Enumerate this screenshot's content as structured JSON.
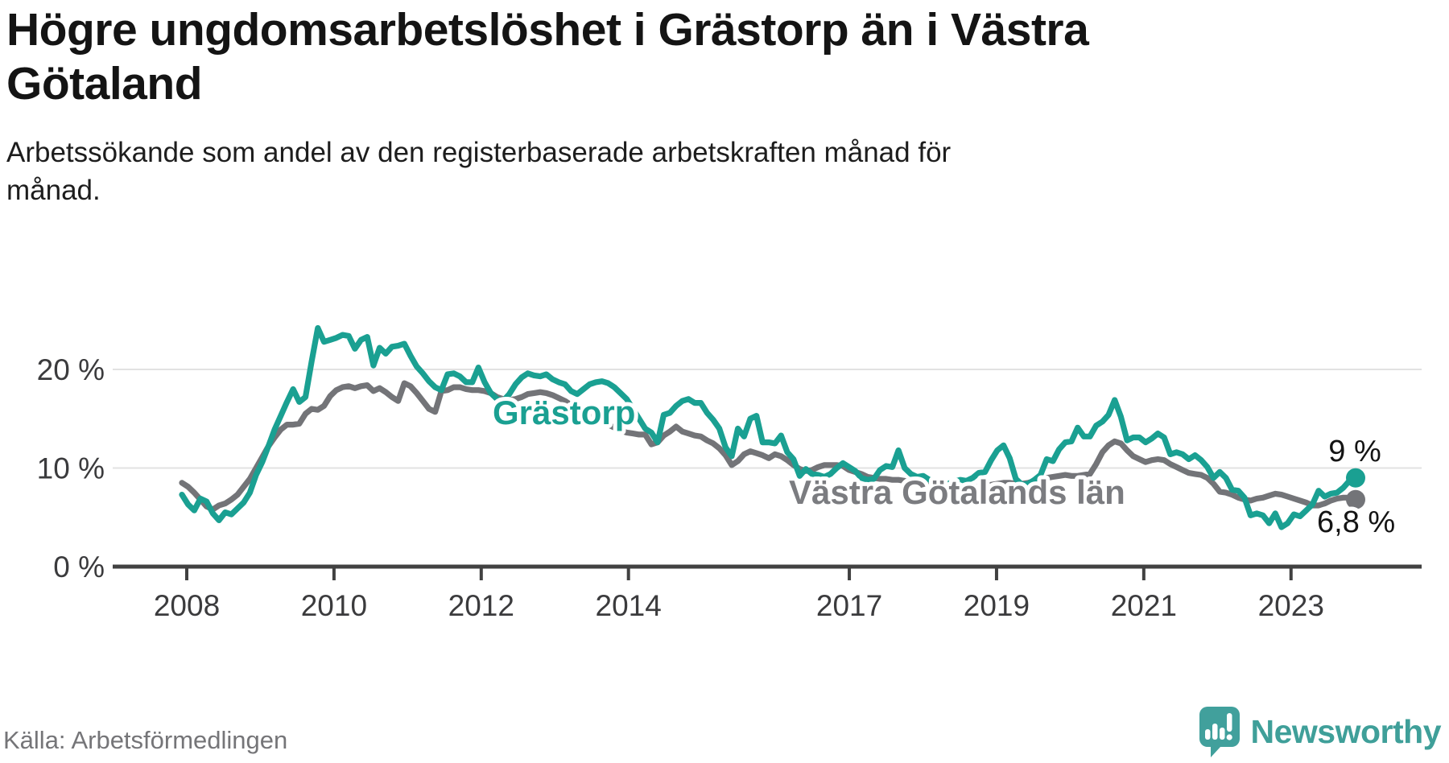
{
  "header": {
    "title_lines": [
      "Högre ungdomsarbetslöshet i Grästorp än i Västra",
      "Götaland"
    ],
    "subtitle_lines": [
      "Arbetssökande som andel av den registerbaserade arbetskraften månad för",
      "månad."
    ]
  },
  "footer": {
    "source": "Källa: Arbetsförmedlingen",
    "brand": "Newsworthy",
    "brand_color": "#3f9f99",
    "brand_icon": "speech-bubble-bar-chart-exclamation"
  },
  "chart_data": {
    "type": "line",
    "title": "Högre ungdomsarbetslöshet i Grästorp än i Västra Götaland",
    "subtitle": "Arbetssökande som andel av den registerbaserade arbetskraften månad för månad.",
    "x_unit": "month",
    "x_start": "2008-01",
    "x_end": "2023-11",
    "ylim": [
      0,
      26
    ],
    "grid": "horizontal",
    "y_ticks": [
      {
        "value": 0,
        "label": "0 %"
      },
      {
        "value": 10,
        "label": "10 %"
      },
      {
        "value": 20,
        "label": "20 %"
      }
    ],
    "x_ticks": [
      {
        "year": 2008,
        "label": "2008"
      },
      {
        "year": 2010,
        "label": "2010"
      },
      {
        "year": 2012,
        "label": "2012"
      },
      {
        "year": 2014,
        "label": "2014"
      },
      {
        "year": 2017,
        "label": "2017"
      },
      {
        "year": 2019,
        "label": "2019"
      },
      {
        "year": 2021,
        "label": "2021"
      },
      {
        "year": 2023,
        "label": "2023"
      }
    ],
    "series": [
      {
        "name": "Västra Götalands län",
        "color": "#737478",
        "label_color": "#7b7c80",
        "end_label": "6,8 %",
        "end_value": 6.8,
        "values": [
          8.5,
          8.1,
          7.5,
          6.8,
          6.1,
          5.8,
          6.2,
          6.4,
          6.8,
          7.3,
          8.1,
          8.9,
          10.0,
          11.1,
          12.2,
          13.1,
          13.9,
          14.4,
          14.4,
          14.5,
          15.5,
          16.0,
          15.9,
          16.3,
          17.3,
          17.9,
          18.2,
          18.3,
          18.1,
          18.3,
          18.4,
          17.8,
          18.1,
          17.7,
          17.2,
          16.8,
          18.6,
          18.3,
          17.6,
          16.8,
          16.0,
          15.7,
          17.8,
          17.9,
          18.2,
          18.2,
          18.0,
          17.9,
          17.9,
          17.8,
          17.6,
          17.2,
          17.0,
          16.9,
          17.0,
          17.2,
          17.5,
          17.6,
          17.7,
          17.6,
          17.4,
          17.1,
          16.8,
          16.4,
          16.0,
          15.6,
          15.3,
          15.0,
          14.7,
          14.4,
          14.1,
          13.8,
          13.6,
          13.5,
          13.4,
          13.4,
          12.4,
          12.6,
          13.3,
          13.7,
          14.2,
          13.7,
          13.5,
          13.3,
          13.2,
          12.8,
          12.5,
          12.0,
          11.3,
          10.3,
          10.7,
          11.4,
          11.7,
          11.5,
          11.3,
          11.0,
          11.4,
          11.2,
          10.8,
          10.3,
          9.9,
          9.7,
          9.8,
          10.1,
          10.3,
          10.3,
          10.3,
          10.2,
          9.8,
          9.6,
          9.4,
          9.1,
          9.0,
          8.9,
          8.9,
          8.8,
          8.8,
          8.7,
          8.5,
          8.4,
          8.3,
          8.2,
          8.1,
          8.0,
          7.9,
          7.9,
          8.0,
          8.0,
          8.1,
          8.1,
          8.2,
          8.3,
          8.4,
          8.5,
          8.5,
          8.4,
          8.4,
          8.5,
          8.7,
          8.8,
          9.0,
          9.1,
          9.2,
          9.3,
          9.2,
          9.2,
          9.3,
          9.4,
          10.4,
          11.6,
          12.3,
          12.7,
          12.5,
          11.8,
          11.2,
          10.9,
          10.6,
          10.8,
          10.9,
          10.8,
          10.4,
          10.1,
          9.8,
          9.5,
          9.4,
          9.3,
          9.0,
          8.4,
          7.6,
          7.5,
          7.3,
          7.0,
          6.8,
          6.7,
          6.9,
          7.0,
          7.2,
          7.4,
          7.3,
          7.1,
          6.9,
          6.7,
          6.5,
          6.2,
          6.2,
          6.4,
          6.7,
          6.9,
          7.0,
          7.0,
          6.8
        ]
      },
      {
        "name": "Grästorp",
        "color": "#1aa092",
        "label_color": "#1aa092",
        "end_label": "9 %",
        "end_value": 9,
        "values": [
          7.3,
          6.3,
          5.7,
          6.9,
          6.6,
          5.4,
          4.7,
          5.5,
          5.3,
          5.9,
          6.5,
          7.5,
          9.3,
          10.6,
          12.2,
          13.9,
          15.3,
          16.7,
          18.0,
          16.7,
          17.2,
          20.8,
          24.2,
          22.8,
          23.0,
          23.2,
          23.5,
          23.4,
          22.1,
          23.0,
          23.3,
          20.4,
          22.2,
          21.6,
          22.3,
          22.4,
          22.6,
          21.4,
          20.3,
          19.6,
          18.8,
          18.2,
          17.9,
          19.5,
          19.6,
          19.3,
          18.7,
          18.7,
          20.2,
          18.7,
          17.6,
          17.0,
          16.8,
          17.5,
          18.5,
          19.2,
          19.6,
          19.4,
          19.3,
          19.5,
          19.0,
          18.7,
          18.5,
          17.8,
          17.5,
          18.0,
          18.5,
          18.7,
          18.8,
          18.6,
          18.2,
          17.6,
          17.0,
          16.0,
          15.0,
          14.0,
          13.6,
          12.6,
          15.4,
          15.6,
          16.3,
          16.8,
          17.0,
          16.6,
          16.6,
          15.6,
          14.9,
          14.0,
          12.1,
          11.2,
          14.0,
          13.2,
          15.0,
          15.3,
          12.6,
          12.6,
          12.5,
          13.3,
          11.6,
          10.9,
          9.2,
          9.9,
          9.4,
          9.3,
          9.1,
          9.4,
          10.0,
          10.5,
          10.1,
          9.7,
          9.0,
          8.8,
          8.9,
          9.8,
          10.2,
          10.1,
          11.8,
          10.0,
          9.4,
          9.1,
          9.2,
          8.8,
          8.6,
          8.5,
          8.4,
          8.6,
          8.8,
          8.7,
          9.0,
          9.5,
          9.6,
          10.8,
          11.8,
          12.3,
          11.0,
          8.9,
          8.3,
          8.4,
          8.8,
          9.3,
          10.9,
          10.7,
          11.9,
          12.6,
          12.7,
          14.1,
          13.2,
          13.2,
          14.3,
          14.7,
          15.4,
          16.9,
          15.2,
          12.8,
          13.1,
          13.1,
          12.6,
          13.0,
          13.5,
          13.1,
          11.4,
          11.6,
          11.4,
          10.9,
          11.3,
          10.8,
          10.1,
          9.0,
          9.6,
          9.0,
          7.8,
          7.7,
          7.0,
          5.2,
          5.4,
          5.2,
          4.4,
          5.4,
          4.0,
          4.4,
          5.3,
          5.1,
          5.7,
          6.3,
          7.7,
          7.1,
          7.4,
          7.5,
          8.0,
          8.7,
          9.0
        ]
      }
    ]
  }
}
